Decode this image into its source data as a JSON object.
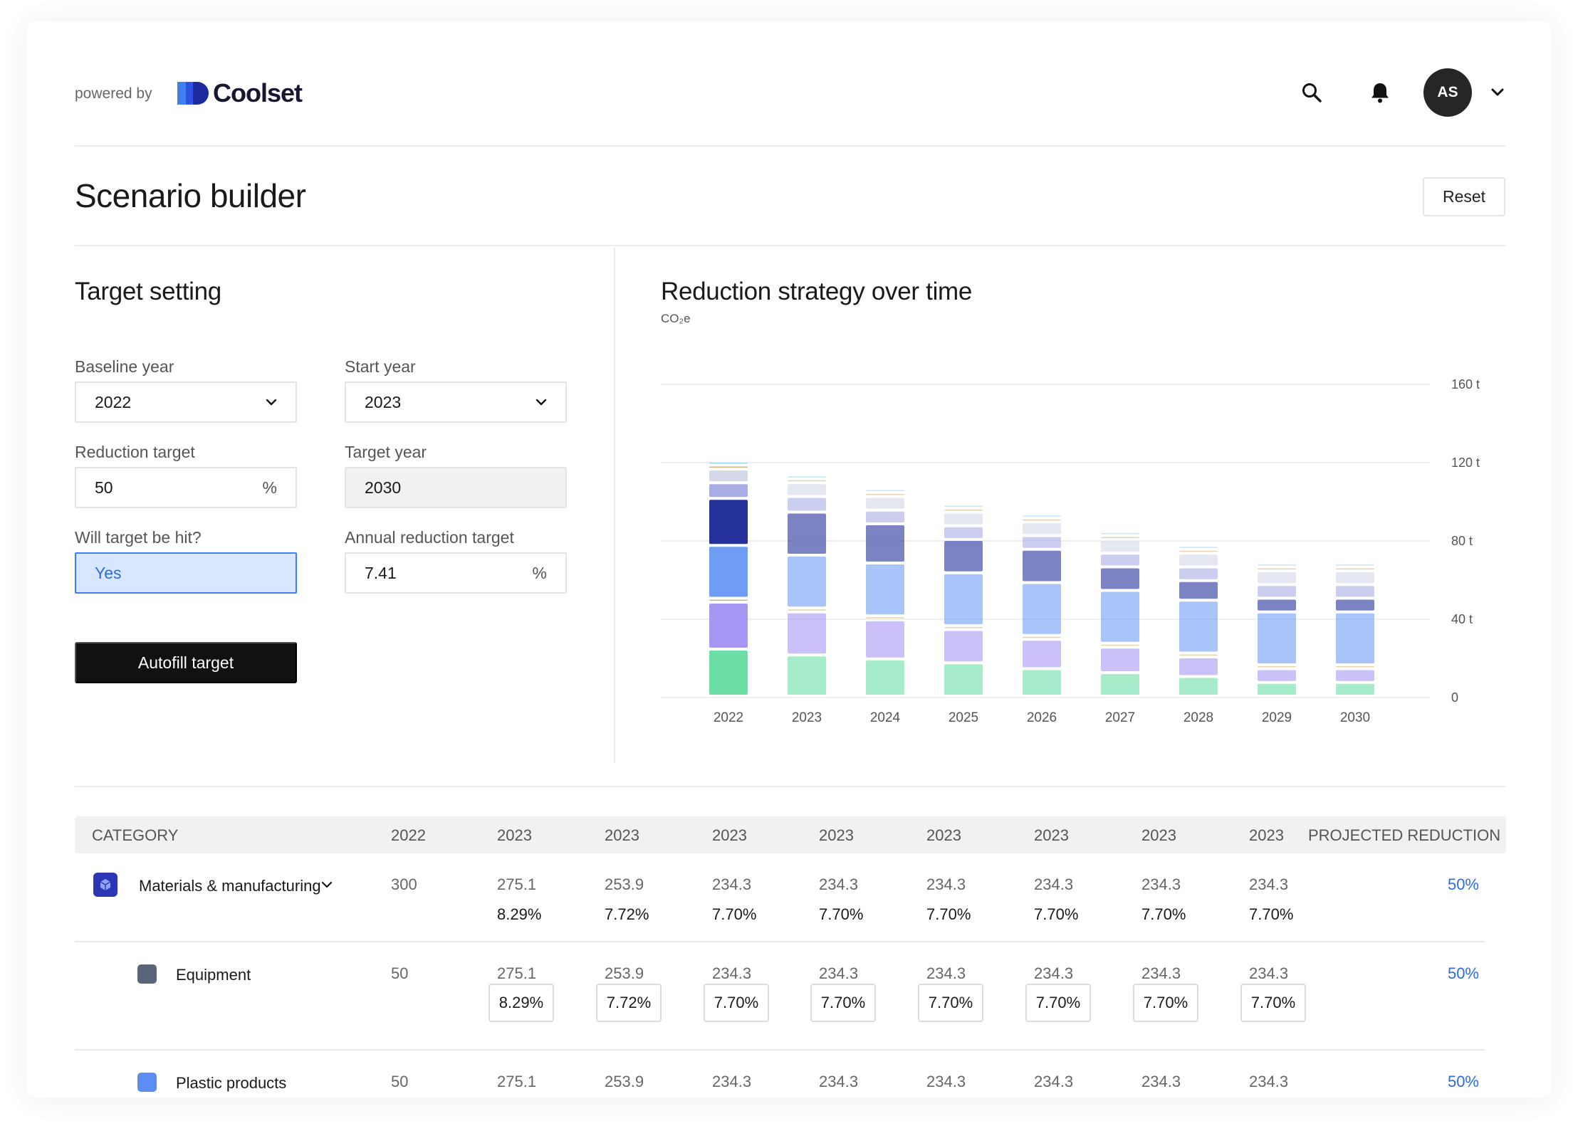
{
  "header": {
    "powered_by": "powered by",
    "brand": "Coolset",
    "avatar_initials": "AS"
  },
  "page": {
    "title": "Scenario builder",
    "reset_label": "Reset"
  },
  "target_setting": {
    "title": "Target setting",
    "baseline_year_label": "Baseline year",
    "baseline_year_value": "2022",
    "start_year_label": "Start year",
    "start_year_value": "2023",
    "reduction_target_label": "Reduction target",
    "reduction_target_value": "50",
    "reduction_target_unit": "%",
    "target_year_label": "Target year",
    "target_year_value": "2030",
    "will_hit_label": "Will target be hit?",
    "will_hit_value": "Yes",
    "annual_reduction_label": "Annual reduction target",
    "annual_reduction_value": "7.41",
    "annual_reduction_unit": "%",
    "autofill_label": "Autofill target"
  },
  "chart_data": {
    "type": "bar",
    "title": "Reduction strategy over time",
    "subtitle": "CO₂e",
    "ylim": [
      0,
      160
    ],
    "yticks": [
      "0",
      "40 t",
      "80 t",
      "120 t",
      "160 t"
    ],
    "categories": [
      "2022",
      "2023",
      "2024",
      "2025",
      "2026",
      "2027",
      "2028",
      "2029",
      "2030"
    ],
    "stacked": true,
    "series": [
      {
        "color": "#6ddfa6",
        "values": [
          24,
          21,
          19,
          17,
          14,
          12,
          10,
          7,
          7
        ]
      },
      {
        "color": "#a896f4",
        "values": [
          24,
          22,
          20,
          17,
          15,
          13,
          10,
          7,
          7
        ]
      },
      {
        "color": "#d9b27a",
        "values": [
          2,
          2,
          2,
          2,
          2,
          2,
          2,
          2,
          2
        ]
      },
      {
        "color": "#6f9df5",
        "values": [
          27,
          27,
          27,
          27,
          27,
          27,
          27,
          27,
          27
        ]
      },
      {
        "color": "#24319a",
        "values": [
          24,
          22,
          20,
          17,
          17,
          12,
          10,
          7,
          7
        ]
      },
      {
        "color": "#a8aee4",
        "values": [
          8,
          8,
          7,
          7,
          7,
          7,
          7,
          7,
          7
        ]
      },
      {
        "color": "#d5d8e8",
        "values": [
          7,
          7,
          7,
          7,
          7,
          7,
          7,
          7,
          7
        ]
      },
      {
        "color": "#d9b27a",
        "values": [
          2,
          2,
          2,
          2,
          2,
          2,
          2,
          2,
          2
        ]
      },
      {
        "color": "#9ad9ee",
        "values": [
          2,
          2,
          2,
          2,
          2,
          2,
          2,
          2,
          2
        ]
      }
    ]
  },
  "table": {
    "headers": [
      "CATEGORY",
      "2022",
      "2023",
      "2023",
      "2023",
      "2023",
      "2023",
      "2023",
      "2023",
      "2023",
      "PROJECTED REDUCTION"
    ],
    "rows": [
      {
        "name": "Materials & manufacturing",
        "baseline": "300",
        "values": [
          "275.1",
          "253.9",
          "234.3",
          "234.3",
          "234.3",
          "234.3",
          "234.3",
          "234.3"
        ],
        "pcts": [
          "8.29%",
          "7.72%",
          "7.70%",
          "7.70%",
          "7.70%",
          "7.70%",
          "7.70%",
          "7.70%"
        ],
        "reduction": "50%",
        "icon_color": "#2f36b5"
      },
      {
        "name": "Equipment",
        "baseline": "50",
        "values": [
          "275.1",
          "253.9",
          "234.3",
          "234.3",
          "234.3",
          "234.3",
          "234.3",
          "234.3"
        ],
        "pcts": [
          "8.29%",
          "7.72%",
          "7.70%",
          "7.70%",
          "7.70%",
          "7.70%",
          "7.70%",
          "7.70%"
        ],
        "reduction": "50%",
        "icon_color": "#5b6579"
      },
      {
        "name": "Plastic products",
        "baseline": "50",
        "values": [
          "275.1",
          "253.9",
          "234.3",
          "234.3",
          "234.3",
          "234.3",
          "234.3",
          "234.3"
        ],
        "reduction": "50%",
        "icon_color": "#5b8df2"
      }
    ]
  }
}
